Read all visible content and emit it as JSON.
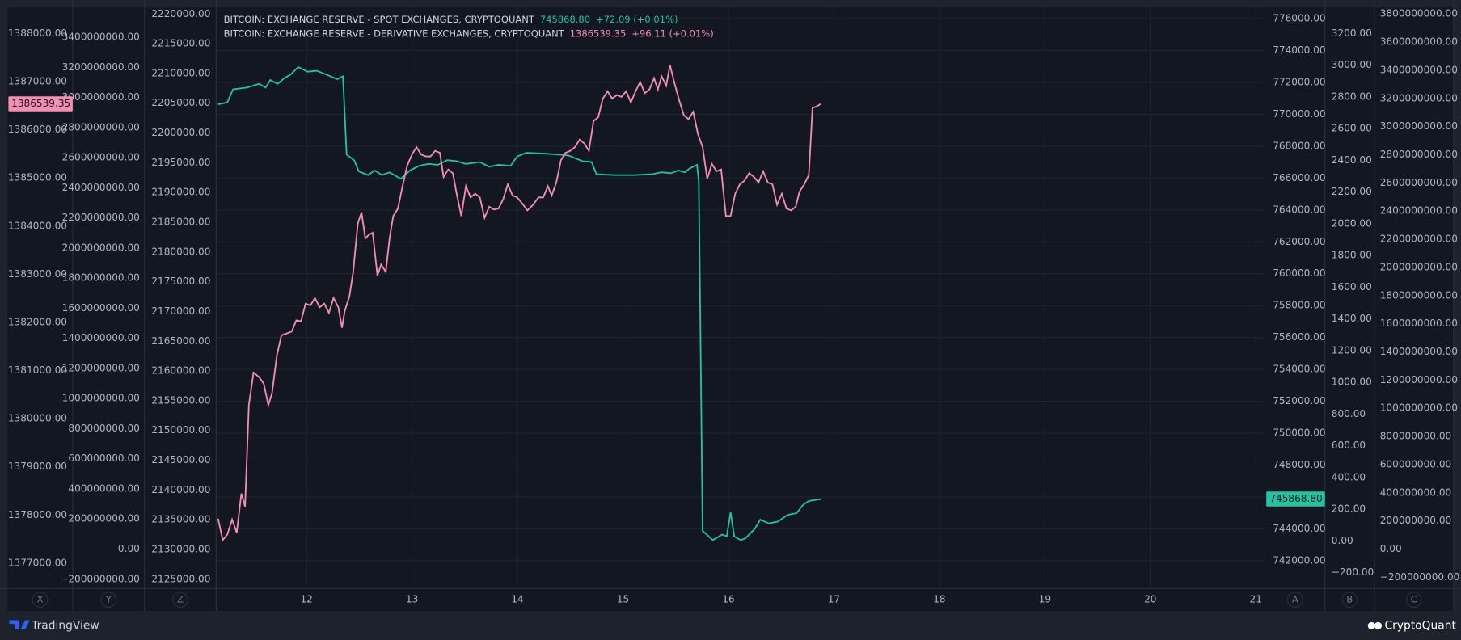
{
  "chart_data": {
    "type": "line",
    "xlim": [
      11.143,
      21.09
    ],
    "xticks": [
      12,
      13,
      14,
      15,
      16,
      17,
      18,
      19,
      20,
      21
    ],
    "xgrid": true,
    "axes": [
      {
        "name": "X",
        "lim": [
          1376473,
          1388541
        ],
        "ticks": [
          {
            "value": 1377000,
            "label": "1377000.00"
          },
          {
            "value": 1378000,
            "label": "1378000.00"
          },
          {
            "value": 1379000,
            "label": "1379000.00"
          },
          {
            "value": 1380000,
            "label": "1380000.00"
          },
          {
            "value": 1381000,
            "label": "1381000.00"
          },
          {
            "value": 1382000,
            "label": "1382000.00"
          },
          {
            "value": 1383000,
            "label": "1383000.00"
          },
          {
            "value": 1384000,
            "label": "1384000.00"
          },
          {
            "value": 1385000,
            "label": "1385000.00"
          },
          {
            "value": 1386000,
            "label": "1386000.00"
          },
          {
            "value": 1387000,
            "label": "1387000.00"
          },
          {
            "value": 1388000,
            "label": "1388000.00"
          }
        ]
      },
      {
        "name": "Y",
        "lim": [
          -262000000,
          3598000000
        ],
        "ticks": [
          {
            "value": -200000000,
            "label": "−200000000.00"
          },
          {
            "value": 0,
            "label": "0.00"
          },
          {
            "value": 200000000,
            "label": "200000000.00"
          },
          {
            "value": 400000000,
            "label": "400000000.00"
          },
          {
            "value": 600000000,
            "label": "600000000.00"
          },
          {
            "value": 800000000,
            "label": "800000000.00"
          },
          {
            "value": 1000000000,
            "label": "1000000000.00"
          },
          {
            "value": 1200000000,
            "label": "1200000000.00"
          },
          {
            "value": 1400000000,
            "label": "1400000000.00"
          },
          {
            "value": 1600000000,
            "label": "1600000000.00"
          },
          {
            "value": 1800000000,
            "label": "1800000000.00"
          },
          {
            "value": 2000000000,
            "label": "2000000000.00"
          },
          {
            "value": 2200000000,
            "label": "2200000000.00"
          },
          {
            "value": 2400000000,
            "label": "2400000000.00"
          },
          {
            "value": 2600000000,
            "label": "2600000000.00"
          },
          {
            "value": 2800000000,
            "label": "2800000000.00"
          },
          {
            "value": 3000000000,
            "label": "3000000000.00"
          },
          {
            "value": 3200000000,
            "label": "3200000000.00"
          },
          {
            "value": 3400000000,
            "label": "3400000000.00"
          }
        ]
      },
      {
        "name": "Z",
        "lim": [
          2123440,
          2221096
        ],
        "ticks": [
          {
            "value": 2125000,
            "label": "2125000.00"
          },
          {
            "value": 2130000,
            "label": "2130000.00"
          },
          {
            "value": 2135000,
            "label": "2135000.00"
          },
          {
            "value": 2140000,
            "label": "2140000.00"
          },
          {
            "value": 2145000,
            "label": "2145000.00"
          },
          {
            "value": 2150000,
            "label": "2150000.00"
          },
          {
            "value": 2155000,
            "label": "2155000.00"
          },
          {
            "value": 2160000,
            "label": "2160000.00"
          },
          {
            "value": 2165000,
            "label": "2165000.00"
          },
          {
            "value": 2170000,
            "label": "2170000.00"
          },
          {
            "value": 2175000,
            "label": "2175000.00"
          },
          {
            "value": 2180000,
            "label": "2180000.00"
          },
          {
            "value": 2185000,
            "label": "2185000.00"
          },
          {
            "value": 2190000,
            "label": "2190000.00"
          },
          {
            "value": 2195000,
            "label": "2195000.00"
          },
          {
            "value": 2200000,
            "label": "2200000.00"
          },
          {
            "value": 2205000,
            "label": "2205000.00"
          },
          {
            "value": 2210000,
            "label": "2210000.00"
          },
          {
            "value": 2215000,
            "label": "2215000.00"
          },
          {
            "value": 2220000,
            "label": "2220000.00"
          }
        ]
      },
      {
        "name": "A",
        "lim": [
          740253,
          776701
        ],
        "grid": true,
        "ticks": [
          {
            "value": 742000,
            "label": "742000.00"
          },
          {
            "value": 744000,
            "label": "744000.00"
          },
          {
            "value": 746000,
            "label": "746000.00"
          },
          {
            "value": 748000,
            "label": "748000.00"
          },
          {
            "value": 750000,
            "label": "750000.00"
          },
          {
            "value": 752000,
            "label": "752000.00"
          },
          {
            "value": 754000,
            "label": "754000.00"
          },
          {
            "value": 756000,
            "label": "756000.00"
          },
          {
            "value": 758000,
            "label": "758000.00"
          },
          {
            "value": 760000,
            "label": "760000.00"
          },
          {
            "value": 762000,
            "label": "762000.00"
          },
          {
            "value": 764000,
            "label": "764000.00"
          },
          {
            "value": 766000,
            "label": "766000.00"
          },
          {
            "value": 768000,
            "label": "768000.00"
          },
          {
            "value": 770000,
            "label": "770000.00"
          },
          {
            "value": 772000,
            "label": "772000.00"
          },
          {
            "value": 774000,
            "label": "774000.00"
          },
          {
            "value": 776000,
            "label": "776000.00"
          }
        ]
      },
      {
        "name": "B",
        "lim": [
          -300,
          3364
        ],
        "ticks": [
          {
            "value": -200,
            "label": "−200.00"
          },
          {
            "value": 0,
            "label": "0.00"
          },
          {
            "value": 200,
            "label": "200.00"
          },
          {
            "value": 400,
            "label": "400.00"
          },
          {
            "value": 600,
            "label": "600.00"
          },
          {
            "value": 800,
            "label": "800.00"
          },
          {
            "value": 1000,
            "label": "1000.00"
          },
          {
            "value": 1200,
            "label": "1200.00"
          },
          {
            "value": 1400,
            "label": "1400.00"
          },
          {
            "value": 1600,
            "label": "1600.00"
          },
          {
            "value": 1800,
            "label": "1800.00"
          },
          {
            "value": 2000,
            "label": "2000.00"
          },
          {
            "value": 2200,
            "label": "2200.00"
          },
          {
            "value": 2400,
            "label": "2400.00"
          },
          {
            "value": 2600,
            "label": "2600.00"
          },
          {
            "value": 2800,
            "label": "2800.00"
          },
          {
            "value": 3000,
            "label": "3000.00"
          },
          {
            "value": 3200,
            "label": "3200.00"
          }
        ]
      },
      {
        "name": "C",
        "lim": [
          -280000000,
          3846000000
        ],
        "ticks": [
          {
            "value": -200000000,
            "label": "−200000000.00"
          },
          {
            "value": 0,
            "label": "0.00"
          },
          {
            "value": 200000000,
            "label": "200000000.00"
          },
          {
            "value": 400000000,
            "label": "400000000.00"
          },
          {
            "value": 600000000,
            "label": "600000000.00"
          },
          {
            "value": 800000000,
            "label": "800000000.00"
          },
          {
            "value": 1000000000,
            "label": "1000000000.00"
          },
          {
            "value": 1200000000,
            "label": "1200000000.00"
          },
          {
            "value": 1400000000,
            "label": "1400000000.00"
          },
          {
            "value": 1600000000,
            "label": "1600000000.00"
          },
          {
            "value": 1800000000,
            "label": "1800000000.00"
          },
          {
            "value": 2000000000,
            "label": "2000000000.00"
          },
          {
            "value": 2200000000,
            "label": "2200000000.00"
          },
          {
            "value": 2400000000,
            "label": "2400000000.00"
          },
          {
            "value": 2600000000,
            "label": "2600000000.00"
          },
          {
            "value": 2800000000,
            "label": "2800000000.00"
          },
          {
            "value": 3000000000,
            "label": "3000000000.00"
          },
          {
            "value": 3200000000,
            "label": "3200000000.00"
          },
          {
            "value": 3400000000,
            "label": "3400000000.00"
          },
          {
            "value": 3600000000,
            "label": "3600000000.00"
          },
          {
            "value": 3800000000,
            "label": "3800000000.00"
          }
        ]
      }
    ],
    "series": [
      {
        "name": "BITCOIN: EXCHANGE RESERVE - SPOT EXCHANGES, CRYPTOQUANT",
        "color": "#22c3a0",
        "axis": "A",
        "last_label": "745868.80",
        "change": "+72.09 (+0.01%)",
        "x": [
          11.161,
          11.249,
          11.302,
          11.435,
          11.55,
          11.612,
          11.656,
          11.726,
          11.788,
          11.85,
          11.921,
          12.009,
          12.097,
          12.186,
          12.292,
          12.345,
          12.38,
          12.451,
          12.495,
          12.583,
          12.645,
          12.716,
          12.787,
          12.893,
          12.981,
          13.069,
          13.158,
          13.246,
          13.334,
          13.423,
          13.511,
          13.643,
          13.732,
          13.82,
          13.935,
          13.997,
          14.085,
          14.262,
          14.394,
          14.483,
          14.615,
          14.703,
          14.748,
          14.924,
          15.101,
          15.278,
          15.366,
          15.454,
          15.525,
          15.587,
          15.631,
          15.702,
          15.719,
          15.755,
          15.852,
          15.94,
          15.984,
          16.02,
          16.055,
          16.117,
          16.161,
          16.249,
          16.302,
          16.382,
          16.47,
          16.559,
          16.647,
          16.709,
          16.762,
          16.815,
          16.877
        ],
        "values": [
          770626,
          770743,
          771561,
          771678,
          771911,
          771678,
          772145,
          771911,
          772262,
          772496,
          772963,
          772671,
          772730,
          772496,
          772204,
          772379,
          767472,
          767122,
          766421,
          766187,
          766479,
          766187,
          766362,
          765953,
          766479,
          766771,
          766888,
          766829,
          767122,
          767063,
          766888,
          767005,
          766713,
          766829,
          766771,
          767355,
          767589,
          767530,
          767472,
          767414,
          767063,
          767005,
          766245,
          766187,
          766187,
          766245,
          766362,
          766304,
          766479,
          766362,
          766596,
          766829,
          765778,
          743875,
          743291,
          743641,
          743525,
          745044,
          743525,
          743291,
          743408,
          743992,
          744576,
          744342,
          744459,
          744868,
          744985,
          745510,
          745744,
          745803,
          745868.8
        ]
      },
      {
        "name": "BITCOIN: EXCHANGE RESERVE - DERIVATIVE EXCHANGES, CRYPTOQUANT",
        "color": "#f48fb1",
        "axis": "X",
        "last_label": "1386539.35",
        "change": "+96.11 (+0.01%)",
        "x": [
          11.161,
          11.205,
          11.249,
          11.294,
          11.338,
          11.382,
          11.417,
          11.453,
          11.497,
          11.55,
          11.594,
          11.638,
          11.673,
          11.718,
          11.762,
          11.815,
          11.859,
          11.903,
          11.947,
          11.991,
          12.036,
          12.08,
          12.124,
          12.168,
          12.212,
          12.256,
          12.301,
          12.336,
          12.362,
          12.407,
          12.442,
          12.486,
          12.521,
          12.557,
          12.592,
          12.627,
          12.672,
          12.707,
          12.751,
          12.787,
          12.822,
          12.866,
          12.91,
          12.954,
          12.999,
          13.043,
          13.087,
          13.131,
          13.175,
          13.219,
          13.264,
          13.299,
          13.343,
          13.387,
          13.423,
          13.467,
          13.511,
          13.555,
          13.599,
          13.643,
          13.688,
          13.732,
          13.776,
          13.82,
          13.864,
          13.908,
          13.953,
          13.997,
          14.041,
          14.094,
          14.147,
          14.2,
          14.244,
          14.288,
          14.324,
          14.368,
          14.412,
          14.456,
          14.5,
          14.544,
          14.589,
          14.633,
          14.677,
          14.721,
          14.765,
          14.809,
          14.854,
          14.898,
          14.942,
          14.986,
          15.03,
          15.075,
          15.119,
          15.163,
          15.207,
          15.251,
          15.295,
          15.331,
          15.366,
          15.41,
          15.446,
          15.49,
          15.534,
          15.578,
          15.622,
          15.666,
          15.711,
          15.755,
          15.799,
          15.843,
          15.887,
          15.931,
          15.976,
          16.02,
          16.064,
          16.108,
          16.152,
          16.196,
          16.241,
          16.285,
          16.329,
          16.373,
          16.417,
          16.461,
          16.506,
          16.55,
          16.594,
          16.638,
          16.673,
          16.718,
          16.762,
          16.797,
          16.841,
          16.877
        ],
        "values": [
          1377924,
          1377479,
          1377595,
          1377905,
          1377634,
          1378446,
          1378175,
          1380283,
          1380960,
          1380864,
          1380728,
          1380283,
          1380535,
          1381308,
          1381734,
          1381773,
          1381811,
          1382043,
          1382024,
          1382392,
          1382353,
          1382508,
          1382314,
          1382392,
          1382198,
          1382508,
          1382314,
          1381889,
          1382237,
          1382546,
          1383049,
          1384054,
          1384286,
          1383745,
          1383822,
          1383861,
          1382971,
          1383203,
          1383049,
          1383745,
          1384209,
          1384364,
          1384828,
          1385254,
          1385486,
          1385640,
          1385486,
          1385447,
          1385447,
          1385563,
          1385524,
          1385022,
          1385176,
          1385099,
          1384674,
          1384209,
          1384828,
          1384596,
          1384674,
          1384596,
          1384171,
          1384403,
          1384345,
          1384364,
          1384557,
          1384867,
          1384635,
          1384596,
          1384480,
          1384326,
          1384442,
          1384596,
          1384596,
          1384828,
          1384635,
          1384906,
          1385370,
          1385524,
          1385563,
          1385640,
          1385795,
          1385718,
          1385563,
          1386182,
          1386259,
          1386646,
          1386800,
          1386646,
          1386723,
          1386684,
          1386800,
          1386568,
          1386800,
          1386993,
          1386762,
          1386839,
          1387071,
          1386839,
          1387110,
          1386916,
          1387342,
          1386955,
          1386607,
          1386298,
          1386221,
          1386375,
          1385911,
          1385640,
          1384983,
          1385292,
          1385138,
          1385176,
          1384209,
          1384209,
          1384674,
          1384867,
          1384944,
          1385099,
          1385022,
          1384906,
          1385138,
          1384906,
          1384867,
          1384442,
          1384674,
          1384364,
          1384326,
          1384403,
          1384712,
          1384867,
          1385060,
          1386453,
          1386492,
          1386539.35
        ]
      }
    ]
  },
  "footer": {
    "left": "TradingView",
    "right": "CryptoQuant"
  }
}
